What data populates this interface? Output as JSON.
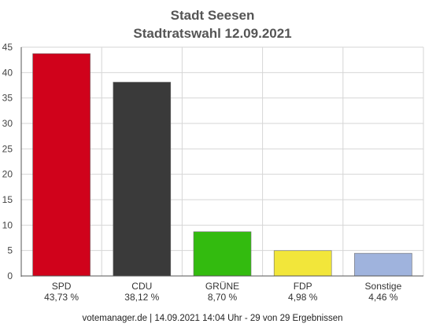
{
  "chart_data": {
    "type": "bar",
    "title": "Stadt Seesen",
    "subtitle": "Stadtratswahl 12.09.2021",
    "categories": [
      "SPD",
      "CDU",
      "GRÜNE",
      "FDP",
      "Sonstige"
    ],
    "values": [
      43.73,
      38.12,
      8.7,
      4.98,
      4.46
    ],
    "value_labels": [
      "43,73 %",
      "38,12 %",
      "8,70 %",
      "4,98 %",
      "4,46 %"
    ],
    "colors": [
      "#d0021b",
      "#3a3a3a",
      "#33bb0f",
      "#f2e63a",
      "#9fb3dd"
    ],
    "ylim": [
      0,
      45
    ],
    "yticks": [
      0,
      5,
      10,
      15,
      20,
      25,
      30,
      35,
      40,
      45
    ],
    "grid": true,
    "xlabel": "",
    "ylabel": ""
  },
  "footer": "votemanager.de | 14.09.2021 14:04 Uhr - 29 von 29 Ergebnissen"
}
